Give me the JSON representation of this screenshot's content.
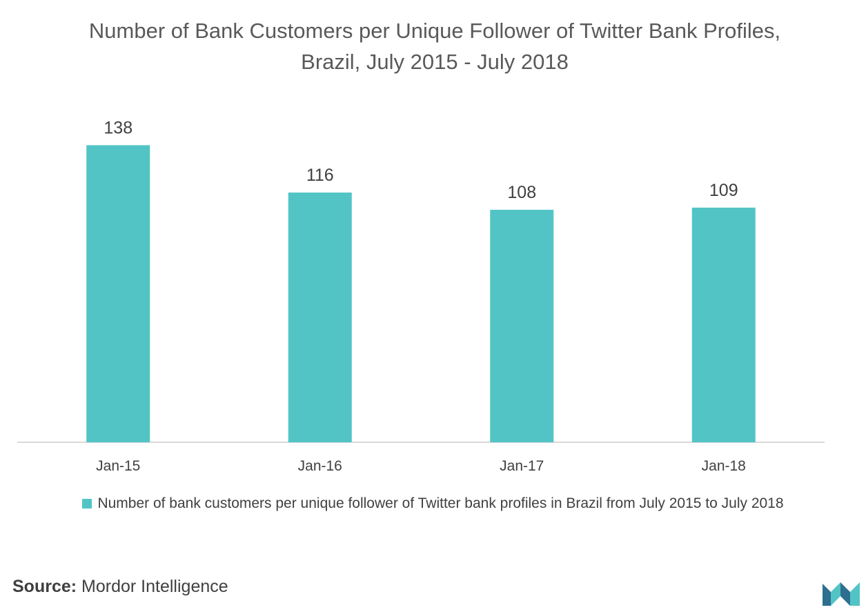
{
  "title": "Number of Bank Customers per Unique Follower of Twitter Bank Profiles, Brazil, July 2015 - July 2018",
  "legend_label": "Number of bank customers per unique follower of Twitter bank profiles in Brazil from July 2015 to July 2018",
  "source": {
    "label": "Source:",
    "text": "Mordor Intelligence"
  },
  "colors": {
    "bar": "#52C4C6",
    "axis": "#D9D9D9",
    "logo_dark": "#2E6E8E",
    "logo_light": "#52C4C6"
  },
  "chart_data": {
    "type": "bar",
    "categories": [
      "Jan-15",
      "Jan-16",
      "Jan-17",
      "Jan-18"
    ],
    "series": [
      {
        "name": "Number of bank customers per unique follower of Twitter bank profiles in Brazil from July 2015 to July 2018",
        "values": [
          138,
          116,
          108,
          109
        ]
      }
    ],
    "ylim": [
      0,
      150
    ],
    "grid": false,
    "legend": "bottom",
    "data_labels": true
  }
}
